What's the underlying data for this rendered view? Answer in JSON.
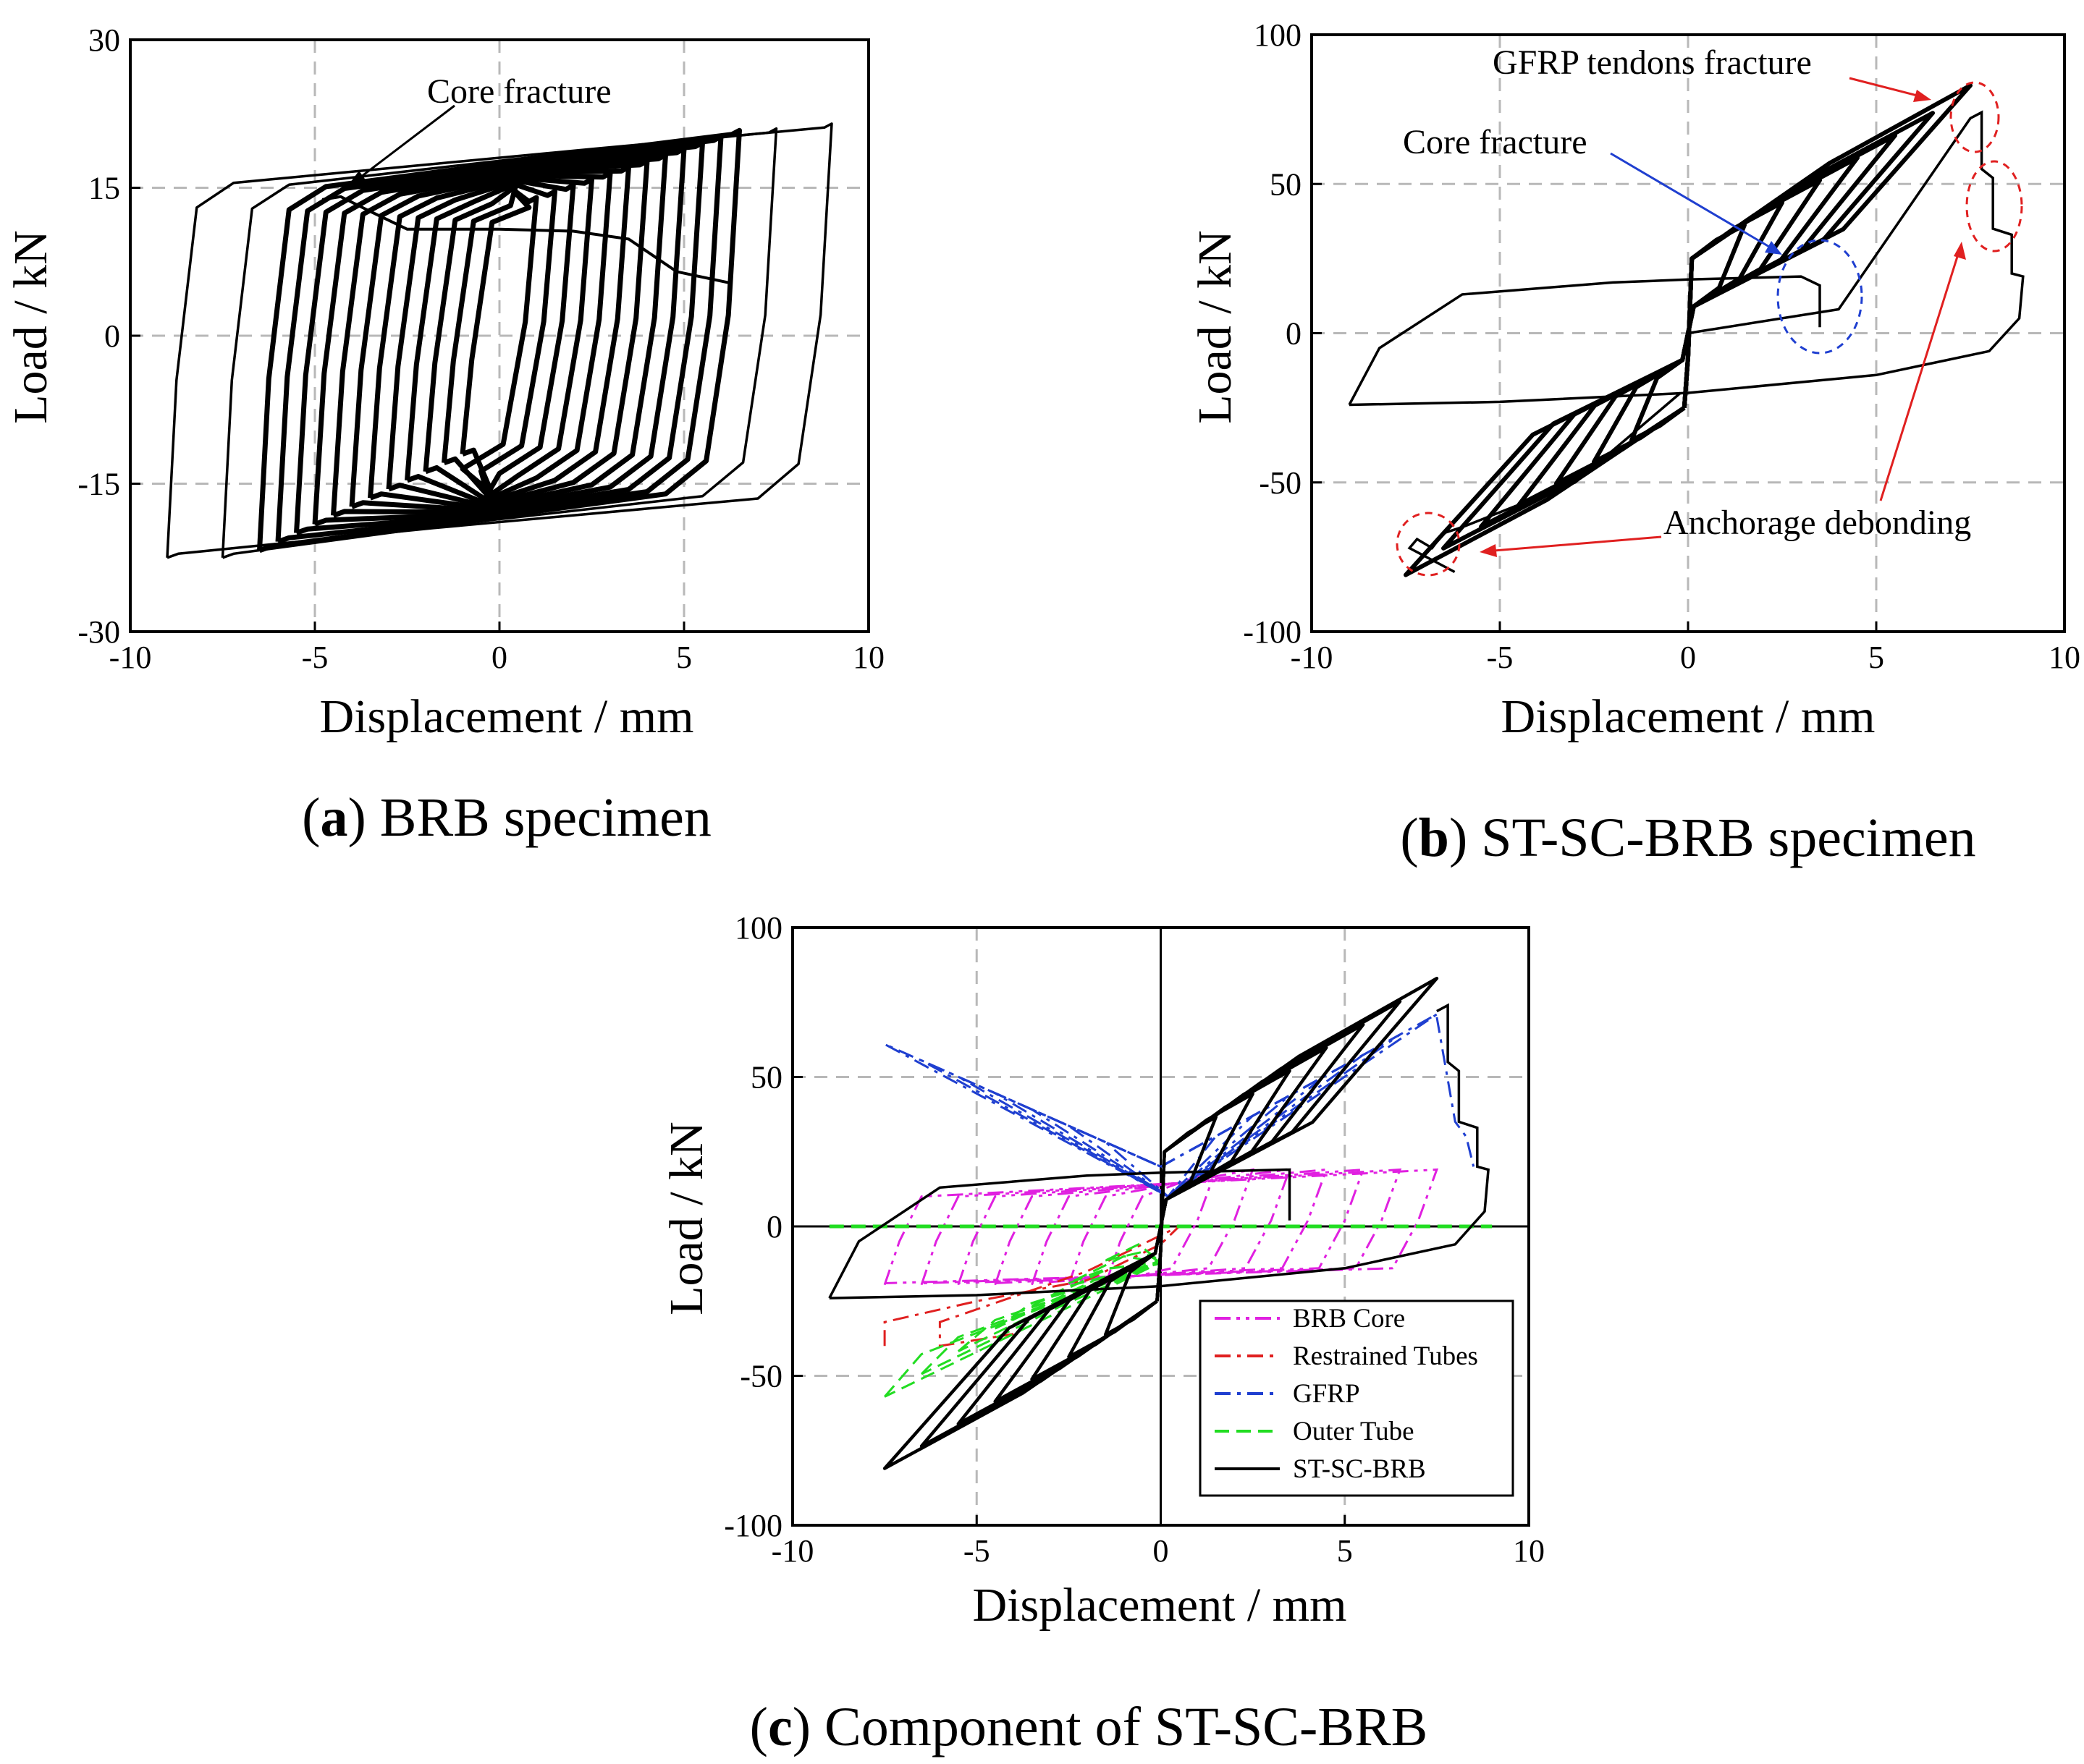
{
  "chart_data": [
    {
      "id": "a",
      "type": "line",
      "caption_letter": "a",
      "caption_text": "BRB specimen",
      "xlabel": "Displacement / mm",
      "ylabel": "Load / kN",
      "xlim": [
        -10,
        10
      ],
      "ylim": [
        -30,
        30
      ],
      "xticks": [
        "-10",
        "-5",
        "0",
        "5",
        "10"
      ],
      "yticks": [
        "-30",
        "-15",
        "0",
        "15",
        "30"
      ],
      "grid": true,
      "annotations": [
        {
          "text": "Core fracture",
          "target": [
            -4,
            14.8
          ]
        }
      ],
      "series": [
        {
          "name": "BRB specimen",
          "color": "#000000",
          "loop_amplitudes": [
            1,
            1.5,
            2,
            2.5,
            3,
            3.5,
            4,
            4.5,
            5,
            5.5,
            6,
            6.5,
            7.5,
            9
          ],
          "yield_load": 14,
          "peak_tension": 21.5,
          "peak_compression": -22.5,
          "fracture_path": {
            "x": [
              -4.8,
              -4.3,
              -3.5,
              -2.5,
              0,
              2,
              3.5,
              4.8,
              6.3
            ],
            "y": [
              13.8,
              14.1,
              12.6,
              10.8,
              10.8,
              10.6,
              9.8,
              6.5,
              5.3
            ]
          }
        }
      ]
    },
    {
      "id": "b",
      "type": "line",
      "caption_letter": "b",
      "caption_text": "ST-SC-BRB specimen",
      "xlabel": "Displacement / mm",
      "ylabel": "Load / kN",
      "xlim": [
        -10,
        10
      ],
      "ylim": [
        -100,
        100
      ],
      "xticks": [
        "-10",
        "-5",
        "0",
        "5",
        "10"
      ],
      "yticks": [
        "-100",
        "-50",
        "0",
        "50",
        "100"
      ],
      "grid": true,
      "annotations": [
        {
          "text": "GFRP tendons fracture",
          "target": [
            7.7,
            80
          ],
          "color": "#e02020"
        },
        {
          "text": "Core fracture",
          "target": [
            2.6,
            25
          ],
          "color": "#1f3fd0"
        },
        {
          "text": "Anchorage debonding",
          "target": [
            7.3,
            35
          ],
          "color": "#e02020"
        }
      ],
      "series": [
        {
          "name": "ST-SC-BRB",
          "color": "#000000",
          "loop_amplitudes": [
            1.5,
            2.5,
            3.5,
            4.5,
            5.5,
            6.5,
            7.5
          ],
          "peak_tension": 83,
          "peak_compression": -81,
          "outer_loop_x": [
            -9,
            -8.2,
            -6,
            -2,
            0,
            3,
            3.5,
            3.5
          ],
          "outer_loop_y": [
            -24,
            -5,
            13,
            17,
            18,
            19,
            16,
            2
          ]
        }
      ]
    },
    {
      "id": "c",
      "type": "line",
      "caption_letter": "c",
      "caption_text": "Component of ST-SC-BRB",
      "xlabel": "Displacement / mm",
      "ylabel": "Load / kN",
      "xlim": [
        -10,
        10
      ],
      "ylim": [
        -100,
        100
      ],
      "xticks": [
        "-10",
        "-5",
        "0",
        "5",
        "10"
      ],
      "yticks": [
        "-100",
        "-50",
        "0",
        "50",
        "100"
      ],
      "grid": true,
      "legend": {
        "position": "bottom-right"
      },
      "series": [
        {
          "name": "BRB Core",
          "color": "#e020e0",
          "dash": "dash-dot-dot",
          "peak_tension": 19,
          "peak_compression": -23
        },
        {
          "name": "Restrained Tubes",
          "color": "#e02020",
          "dash": "dash-dot",
          "peak_compression": -40
        },
        {
          "name": "GFRP",
          "color": "#1f3fd0",
          "dash": "dash-dot",
          "peak_tension": 71,
          "peak_compression_side_load": 61
        },
        {
          "name": "Outer Tube",
          "color": "#22dd22",
          "dash": "dash",
          "peak_compression": -57
        },
        {
          "name": "ST-SC-BRB",
          "color": "#000000",
          "dash": "solid",
          "peak_tension": 83,
          "peak_compression": -81
        }
      ]
    }
  ]
}
